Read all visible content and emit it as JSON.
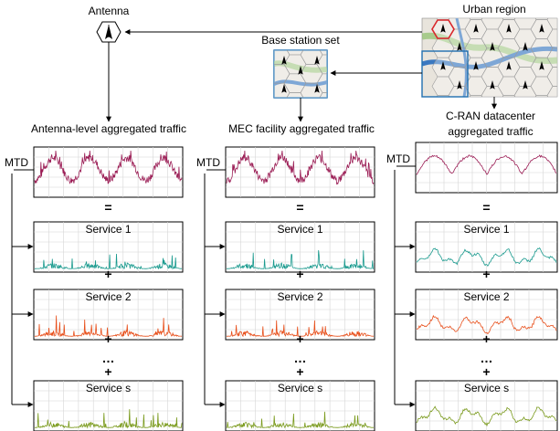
{
  "labels": {
    "antenna": "Antenna",
    "urban_region": "Urban region",
    "base_station_set": "Base station set",
    "antenna_agg": "Antenna-level aggregated traffic",
    "mec_agg": "MEC facility aggregated traffic",
    "cran_agg_line1": "C-RAN datacenter",
    "cran_agg_line2": "aggregated traffic"
  },
  "mtd_label": "MTD",
  "operators": {
    "equals": "=",
    "plus": "+",
    "ellipsis": "…"
  },
  "services": [
    "Service 1",
    "Service 2",
    "Service s"
  ],
  "colors": {
    "aggregate": "#9b1d55",
    "service1": "#1a9a8e",
    "service2": "#e8501c",
    "services": "#7a9a1c",
    "map_water": "#3a78c0",
    "map_green": "#8dc06a",
    "map_land": "#e8e4dc",
    "hex_highlight": "#d9262a"
  },
  "icons": [
    "antenna-icon",
    "urban-region-map",
    "base-station-map"
  ]
}
